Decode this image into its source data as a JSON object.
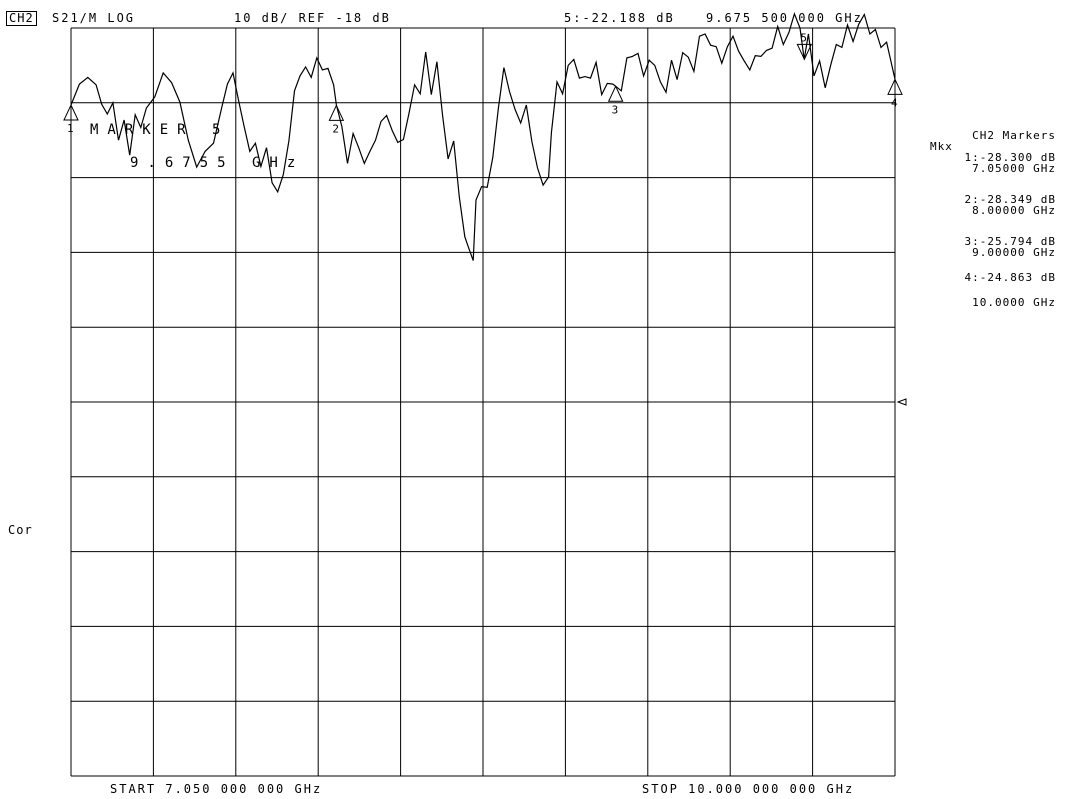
{
  "header": {
    "channel": "CH2",
    "measurement": "S21/M LOG",
    "scale_ref": "10 dB/ REF -18 dB",
    "active_marker": "5:-22.188 dB",
    "active_marker_freq": "9.675 500 000 GHz"
  },
  "overlay": {
    "marker_title": "MARKER 5",
    "marker_freq": "9.6755 GHz"
  },
  "side_panel": {
    "title": "CH2 Markers",
    "subtitle": "Mkx",
    "markers": [
      {
        "value": "1:-28.300 dB",
        "freq": "7.05000 GHz"
      },
      {
        "value": "2:-28.349 dB",
        "freq": "8.00000 GHz"
      },
      {
        "value": "3:-25.794 dB",
        "freq": "9.00000 GHz"
      },
      {
        "value": "4:-24.863 dB",
        "freq": "10.0000 GHz"
      }
    ]
  },
  "left_label": "Cor",
  "footer": {
    "start": "START 7.050 000 000 GHz",
    "stop": "STOP 10.000 000 000 GHz"
  },
  "chart_data": {
    "type": "line",
    "xlabel": "",
    "ylabel": "",
    "xlim": [
      7.05,
      10.0
    ],
    "ylim": [
      -118,
      -18
    ],
    "grid": true,
    "x_unit": "GHz",
    "y_unit": "dB",
    "trace": [
      [
        7.05,
        -28.3
      ],
      [
        7.08,
        -25.5
      ],
      [
        7.11,
        -24.6
      ],
      [
        7.14,
        -25.6
      ],
      [
        7.16,
        -28.2
      ],
      [
        7.18,
        -29.5
      ],
      [
        7.2,
        -28.0
      ],
      [
        7.22,
        -33.0
      ],
      [
        7.24,
        -30.3
      ],
      [
        7.26,
        -35.0
      ],
      [
        7.28,
        -29.6
      ],
      [
        7.3,
        -31.3
      ],
      [
        7.32,
        -28.7
      ],
      [
        7.35,
        -27.2
      ],
      [
        7.38,
        -24.0
      ],
      [
        7.41,
        -25.3
      ],
      [
        7.44,
        -27.9
      ],
      [
        7.47,
        -33.0
      ],
      [
        7.5,
        -36.6
      ],
      [
        7.53,
        -34.5
      ],
      [
        7.56,
        -33.4
      ],
      [
        7.59,
        -28.6
      ],
      [
        7.61,
        -25.5
      ],
      [
        7.63,
        -24.0
      ],
      [
        7.65,
        -27.7
      ],
      [
        7.67,
        -31.2
      ],
      [
        7.69,
        -34.5
      ],
      [
        7.71,
        -33.4
      ],
      [
        7.73,
        -36.5
      ],
      [
        7.75,
        -34.0
      ],
      [
        7.77,
        -38.7
      ],
      [
        7.79,
        -39.9
      ],
      [
        7.81,
        -37.6
      ],
      [
        7.83,
        -33.1
      ],
      [
        7.85,
        -26.4
      ],
      [
        7.87,
        -24.4
      ],
      [
        7.89,
        -23.2
      ],
      [
        7.91,
        -24.6
      ],
      [
        7.93,
        -22.0
      ],
      [
        7.95,
        -23.6
      ],
      [
        7.97,
        -23.4
      ],
      [
        7.99,
        -25.6
      ],
      [
        8.0,
        -28.3
      ],
      [
        8.02,
        -31.2
      ],
      [
        8.04,
        -36.1
      ],
      [
        8.06,
        -32.1
      ],
      [
        8.08,
        -34.0
      ],
      [
        8.1,
        -36.1
      ],
      [
        8.12,
        -34.5
      ],
      [
        8.14,
        -33.0
      ],
      [
        8.16,
        -30.5
      ],
      [
        8.18,
        -29.7
      ],
      [
        8.2,
        -31.7
      ],
      [
        8.22,
        -33.3
      ],
      [
        8.24,
        -32.9
      ],
      [
        8.26,
        -29.4
      ],
      [
        8.28,
        -25.6
      ],
      [
        8.3,
        -26.8
      ],
      [
        8.32,
        -21.2
      ],
      [
        8.34,
        -26.9
      ],
      [
        8.36,
        -22.5
      ],
      [
        8.38,
        -29.6
      ],
      [
        8.4,
        -35.5
      ],
      [
        8.42,
        -33.1
      ],
      [
        8.44,
        -40.6
      ],
      [
        8.46,
        -45.9
      ],
      [
        8.47,
        -47.0
      ],
      [
        8.49,
        -49.1
      ],
      [
        8.5,
        -41.0
      ],
      [
        8.52,
        -39.2
      ],
      [
        8.54,
        -39.3
      ],
      [
        8.56,
        -35.3
      ],
      [
        8.58,
        -28.7
      ],
      [
        8.6,
        -23.3
      ],
      [
        8.62,
        -26.5
      ],
      [
        8.64,
        -28.9
      ],
      [
        8.66,
        -30.7
      ],
      [
        8.68,
        -28.3
      ],
      [
        8.7,
        -33.2
      ],
      [
        8.72,
        -36.7
      ],
      [
        8.74,
        -39.0
      ],
      [
        8.76,
        -37.9
      ],
      [
        8.77,
        -32.0
      ],
      [
        8.79,
        -25.2
      ],
      [
        8.81,
        -26.8
      ],
      [
        8.83,
        -23.0
      ],
      [
        8.85,
        -22.2
      ],
      [
        8.87,
        -24.7
      ],
      [
        8.89,
        -24.5
      ],
      [
        8.91,
        -24.7
      ],
      [
        8.93,
        -22.6
      ],
      [
        8.95,
        -26.9
      ],
      [
        8.97,
        -25.4
      ],
      [
        8.99,
        -25.5
      ],
      [
        9.0,
        -25.8
      ],
      [
        9.02,
        -26.4
      ],
      [
        9.04,
        -22.0
      ],
      [
        9.06,
        -21.8
      ],
      [
        9.08,
        -21.4
      ],
      [
        9.1,
        -24.4
      ],
      [
        9.12,
        -22.3
      ],
      [
        9.14,
        -23.0
      ],
      [
        9.16,
        -25.2
      ],
      [
        9.18,
        -26.6
      ],
      [
        9.2,
        -22.3
      ],
      [
        9.22,
        -24.9
      ],
      [
        9.24,
        -21.3
      ],
      [
        9.26,
        -21.9
      ],
      [
        9.28,
        -23.8
      ],
      [
        9.3,
        -19.1
      ],
      [
        9.32,
        -18.8
      ],
      [
        9.34,
        -20.3
      ],
      [
        9.36,
        -20.5
      ],
      [
        9.38,
        -22.7
      ],
      [
        9.4,
        -20.5
      ],
      [
        9.42,
        -19.1
      ],
      [
        9.44,
        -21.1
      ],
      [
        9.46,
        -22.4
      ],
      [
        9.48,
        -23.6
      ],
      [
        9.5,
        -21.7
      ],
      [
        9.52,
        -21.8
      ],
      [
        9.54,
        -21.0
      ],
      [
        9.56,
        -20.7
      ],
      [
        9.58,
        -17.8
      ],
      [
        9.6,
        -20.2
      ],
      [
        9.62,
        -18.6
      ],
      [
        9.64,
        -16.1
      ],
      [
        9.66,
        -18.0
      ],
      [
        9.675,
        -22.188
      ],
      [
        9.69,
        -18.8
      ],
      [
        9.71,
        -24.4
      ],
      [
        9.73,
        -22.4
      ],
      [
        9.75,
        -26.0
      ],
      [
        9.77,
        -22.9
      ],
      [
        9.79,
        -20.2
      ],
      [
        9.81,
        -20.6
      ],
      [
        9.83,
        -17.6
      ],
      [
        9.85,
        -19.8
      ],
      [
        9.87,
        -17.5
      ],
      [
        9.89,
        -16.2
      ],
      [
        9.91,
        -18.8
      ],
      [
        9.93,
        -18.2
      ],
      [
        9.95,
        -20.6
      ],
      [
        9.97,
        -19.9
      ],
      [
        10.0,
        -24.863
      ]
    ],
    "markers": [
      {
        "label": "1",
        "x": 7.05,
        "y": -28.3
      },
      {
        "label": "2",
        "x": 8.0,
        "y": -28.349
      },
      {
        "label": "3",
        "x": 9.0,
        "y": -25.794
      },
      {
        "label": "4",
        "x": 10.0,
        "y": -24.863
      },
      {
        "label": "5",
        "x": 9.6755,
        "y": -22.188
      }
    ]
  }
}
